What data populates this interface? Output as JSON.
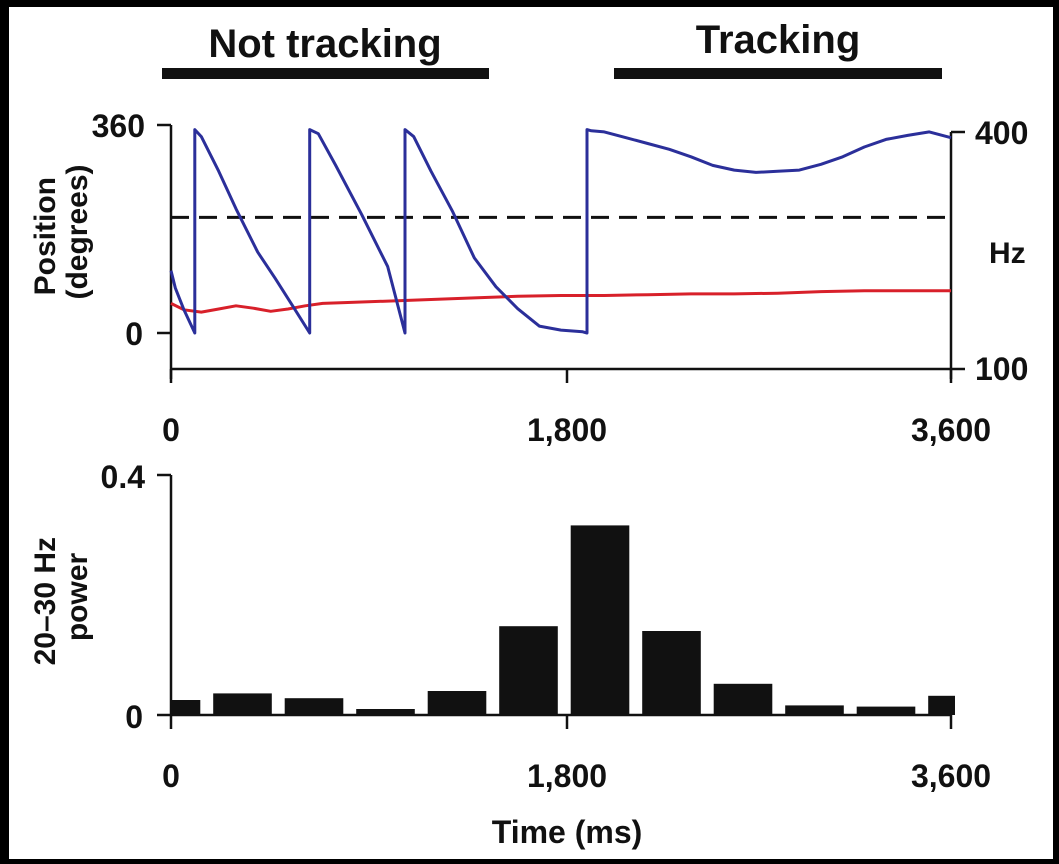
{
  "chart_data": [
    {
      "type": "line",
      "segments": [
        "Not tracking",
        "Tracking"
      ],
      "x_ticks": [
        "0",
        "1,800",
        "3,600"
      ],
      "xlim": [
        0,
        3600
      ],
      "left_axis": {
        "label": "Position\n(degrees)",
        "ticks": [
          "360",
          "0"
        ],
        "range": [
          0,
          360
        ]
      },
      "right_axis": {
        "label": "Hz",
        "ticks": [
          "400",
          "100"
        ],
        "range": [
          100,
          400
        ]
      },
      "colors": {
        "position": "#2b2f9a",
        "frequency": "#d8202a",
        "reference": "#111111"
      },
      "series": [
        {
          "axis": "left",
          "color": "#2b2f9a",
          "x": [
            0,
            20,
            60,
            110,
            110,
            140,
            220,
            300,
            400,
            480,
            560,
            640,
            640,
            680,
            760,
            880,
            1000,
            1080,
            1080,
            1120,
            1200,
            1300,
            1400,
            1500,
            1600,
            1700,
            1800,
            1900,
            1920,
            1920,
            1940,
            2000,
            2100,
            2200,
            2300,
            2400,
            2500,
            2600,
            2700,
            2800,
            2900,
            3000,
            3100,
            3200,
            3300,
            3400,
            3500,
            3600
          ],
          "y": [
            108,
            78,
            40,
            0,
            352,
            340,
            280,
            215,
            140,
            95,
            48,
            0,
            352,
            345,
            290,
            205,
            115,
            0,
            352,
            340,
            280,
            210,
            130,
            80,
            42,
            12,
            5,
            2,
            0,
            352,
            350,
            348,
            338,
            328,
            318,
            305,
            290,
            282,
            278,
            280,
            282,
            292,
            305,
            322,
            335,
            342,
            348,
            338
          ]
        },
        {
          "axis": "right",
          "color": "#d8202a",
          "x": [
            0,
            60,
            140,
            220,
            300,
            380,
            460,
            540,
            620,
            700,
            800,
            1000,
            1200,
            1400,
            1600,
            1800,
            2000,
            2200,
            2400,
            2600,
            2800,
            3000,
            3200,
            3400,
            3600
          ],
          "y": [
            183,
            175,
            172,
            176,
            180,
            177,
            173,
            176,
            180,
            183,
            184,
            186,
            188,
            190,
            192,
            193,
            193,
            194,
            195,
            195,
            196,
            198,
            199,
            199,
            199
          ]
        },
        {
          "axis": "left",
          "style": "dashed",
          "color": "#111111",
          "x": [
            0,
            3600
          ],
          "y": [
            200,
            200
          ]
        }
      ]
    },
    {
      "type": "bar",
      "xlabel": "Time (ms)",
      "ylabel": "20–30 Hz\npower",
      "x_ticks": [
        "0",
        "1,800",
        "3,600"
      ],
      "y_ticks": [
        "0.4",
        "0"
      ],
      "xlim": [
        0,
        3600
      ],
      "ylim": [
        0,
        0.4
      ],
      "bar_color": "#111111",
      "bin_width": 330,
      "bin_centers": [
        0,
        330,
        660,
        990,
        1320,
        1650,
        1980,
        2310,
        2640,
        2970,
        3300,
        3630
      ],
      "values": [
        0.025,
        0.036,
        0.028,
        0.01,
        0.04,
        0.148,
        0.316,
        0.14,
        0.052,
        0.016,
        0.014,
        0.032
      ]
    }
  ]
}
